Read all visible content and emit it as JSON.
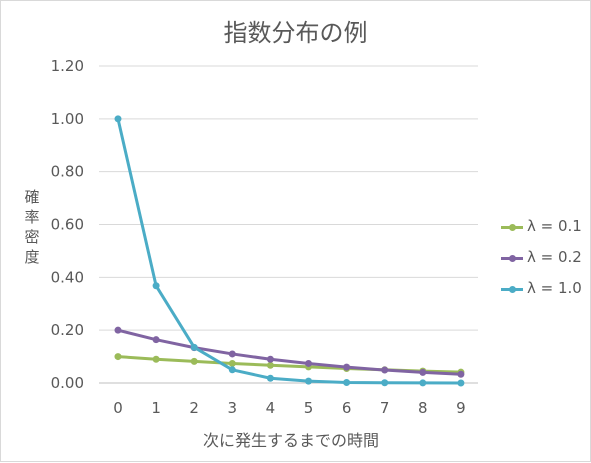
{
  "chart_data": {
    "type": "line",
    "title": "指数分布の例",
    "xlabel": "次に発生するまでの時間",
    "ylabel": "確率密度",
    "x": [
      0,
      1,
      2,
      3,
      4,
      5,
      6,
      7,
      8,
      9
    ],
    "xticks": [
      "0",
      "1",
      "2",
      "3",
      "4",
      "5",
      "6",
      "7",
      "8",
      "9"
    ],
    "ylim": [
      0,
      1.2
    ],
    "yticks": [
      "0.00",
      "0.20",
      "0.40",
      "0.60",
      "0.80",
      "1.00",
      "1.20"
    ],
    "grid": true,
    "legend_position": "right",
    "series": [
      {
        "name": "λ = 0.1",
        "color": "#9bbb59",
        "values": [
          0.1,
          0.09,
          0.082,
          0.074,
          0.067,
          0.061,
          0.055,
          0.05,
          0.045,
          0.041
        ]
      },
      {
        "name": "λ = 0.2",
        "color": "#8064a2",
        "values": [
          0.2,
          0.164,
          0.134,
          0.11,
          0.09,
          0.074,
          0.06,
          0.049,
          0.04,
          0.033
        ]
      },
      {
        "name": "λ = 1.0",
        "color": "#4bacc6",
        "values": [
          1.0,
          0.368,
          0.135,
          0.05,
          0.018,
          0.007,
          0.002,
          0.001,
          0.0003,
          0.0001
        ]
      }
    ]
  }
}
